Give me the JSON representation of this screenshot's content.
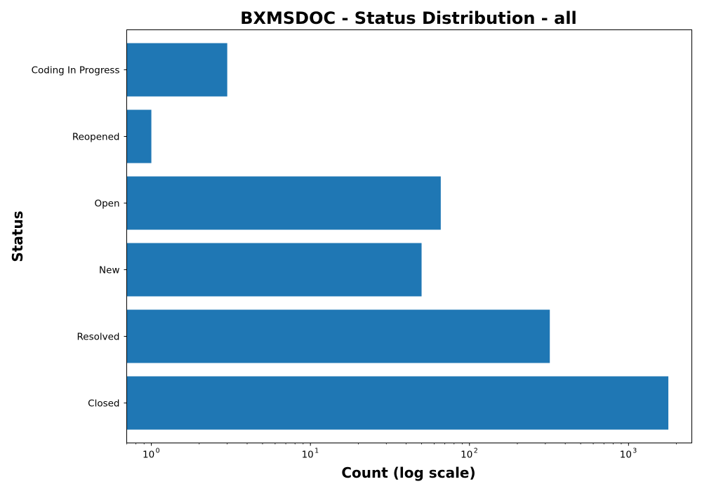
{
  "chart_data": {
    "type": "bar",
    "orientation": "horizontal",
    "title": "BXMSDOC - Status Distribution - all",
    "xlabel": "Count (log scale)",
    "ylabel": "Status",
    "x_scale": "log",
    "xlim": [
      0.7,
      2500
    ],
    "x_ticks": [
      {
        "base": "10",
        "exp": "0",
        "value": 1
      },
      {
        "base": "10",
        "exp": "1",
        "value": 10
      },
      {
        "base": "10",
        "exp": "2",
        "value": 100
      },
      {
        "base": "10",
        "exp": "3",
        "value": 1000
      }
    ],
    "categories": [
      "Closed",
      "Resolved",
      "New",
      "Open",
      "Reopened",
      "Coding In Progress"
    ],
    "values": [
      1780,
      320,
      50,
      66,
      1,
      3
    ],
    "bar_color": "#1f77b4",
    "grid": false,
    "legend": "none"
  }
}
